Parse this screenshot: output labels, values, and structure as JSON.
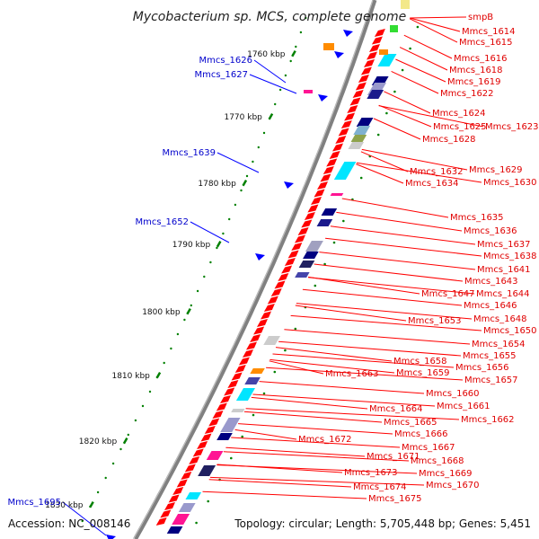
{
  "title": "Mycobacterium sp. MCS, complete genome",
  "accession": "Accession: NC_008146",
  "topology": "Topology: circular; Length: 5,705,448 bp; Genes: 5,451",
  "colors": {
    "forward_gene": "#0000ff",
    "reverse_gene": "#ff0000",
    "backbone": "#808080",
    "tick": "#008000",
    "label_reverse": "#e00000",
    "label_forward": "#0000cc"
  },
  "scale_ticks": [
    "1760 kbp",
    "1770 kbp",
    "1780 kbp",
    "1790 kbp",
    "1800 kbp",
    "1810 kbp",
    "1820 kbp",
    "1830 kbp"
  ],
  "forward_labels": [
    "Mmcs_1626",
    "Mmcs_1627",
    "Mmcs_1639",
    "Mmcs_1652",
    "Mmcs_1695"
  ],
  "reverse_labels": [
    "smpB",
    "Mmcs_1614",
    "Mmcs_1615",
    "Mmcs_1616",
    "Mmcs_1618",
    "Mmcs_1619",
    "Mmcs_1622",
    "Mmcs_1624",
    "Mmcs_1625",
    "Mmcs_1623",
    "Mmcs_1628",
    "Mmcs_1629",
    "Mmcs_1632",
    "Mmcs_1630",
    "Mmcs_1634",
    "Mmcs_1635",
    "Mmcs_1636",
    "Mmcs_1637",
    "Mmcs_1638",
    "Mmcs_1641",
    "Mmcs_1643",
    "Mmcs_1647",
    "Mmcs_1644",
    "Mmcs_1646",
    "Mmcs_1648",
    "Mmcs_1653",
    "Mmcs_1650",
    "Mmcs_1654",
    "Mmcs_1655",
    "Mmcs_1658",
    "Mmcs_1656",
    "Mmcs_1659",
    "Mmcs_1663",
    "Mmcs_1657",
    "Mmcs_1660",
    "Mmcs_1661",
    "Mmcs_1664",
    "Mmcs_1662",
    "Mmcs_1665",
    "Mmcs_1666",
    "Mmcs_1667",
    "Mmcs_1672",
    "Mmcs_1668",
    "Mmcs_1671",
    "Mmcs_1669",
    "Mmcs_1673",
    "Mmcs_1670",
    "Mmcs_1674",
    "Mmcs_1675"
  ]
}
